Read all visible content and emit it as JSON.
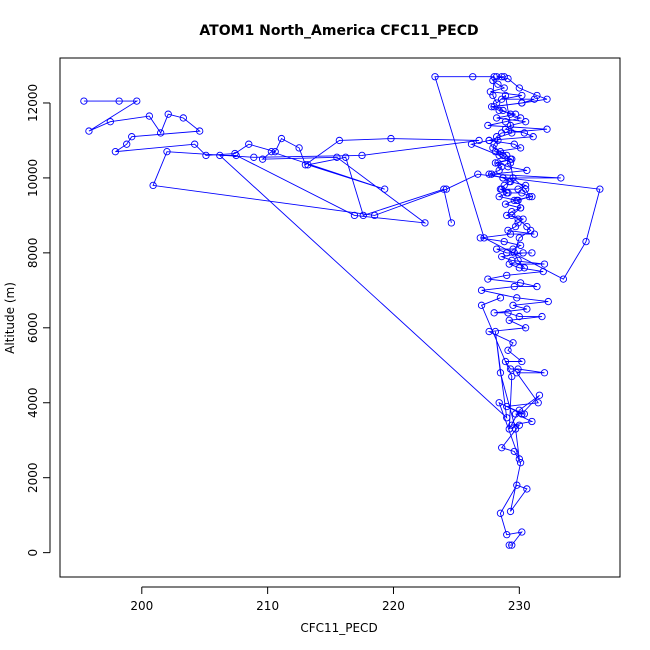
{
  "chart_data": {
    "type": "scatter",
    "title": "ATOM1 North_America CFC11_PECD",
    "xlabel": "CFC11_PECD",
    "ylabel": "Altitude (m)",
    "xlim": [
      193.5,
      238.0
    ],
    "ylim": [
      -650,
      13200
    ],
    "xticks": [
      200,
      210,
      220,
      230
    ],
    "yticks": [
      0,
      2000,
      4000,
      6000,
      8000,
      10000,
      12000
    ],
    "grid": false,
    "legend": "none",
    "colors": {
      "series": "#0000ff",
      "axis": "#000000"
    },
    "markers": "open-circle",
    "connected": true,
    "series": [
      {
        "x": [
          229.2,
          229.4,
          230.2,
          229.0,
          228.5,
          229.8,
          230.6,
          229.3,
          230.1,
          229.6,
          228.6,
          230.0,
          229.4,
          231.0,
          229.7,
          230.4,
          229.0,
          231.5,
          229.8,
          232.0,
          229.9,
          229.3,
          228.9,
          230.2,
          229.1,
          229.5,
          227.6,
          230.5,
          229.2,
          231.8,
          230.0,
          229.1,
          228.0,
          230.6,
          229.5,
          232.3,
          229.8,
          227.0,
          229.6,
          231.4,
          230.1,
          227.5,
          229.0,
          231.9,
          230.0,
          229.2,
          232.0,
          229.4,
          228.6,
          230.3,
          231.0,
          229.0,
          228.2,
          229.5,
          230.1,
          228.8,
          226.9,
          229.3,
          231.2,
          229.1,
          229.7,
          229.9,
          230.3,
          229.0,
          229.4,
          230.1,
          228.9,
          229.6,
          231.0,
          230.2,
          229.0,
          228.5,
          229.9,
          230.5,
          229.3,
          228.7,
          233.3,
          227.8,
          230.6,
          229.1,
          228.3,
          229.4,
          228.7,
          228.1,
          230.1,
          229.6,
          227.6,
          231.1,
          230.4,
          228.9,
          229.3,
          230.5,
          228.2,
          229.7,
          228.4,
          227.8,
          230.2,
          231.2,
          228.6,
          230.2,
          227.7,
          228.8,
          228.3,
          227.9,
          228.6,
          228.8,
          228.2,
          229.1,
          230.0,
          231.4,
          232.2,
          230.2,
          228.0,
          228.7,
          229.3,
          230.1,
          228.9,
          227.5,
          232.2,
          228.6,
          228.2,
          228.3,
          228.0,
          227.9,
          228.5,
          229.0,
          229.3,
          228.1,
          228.6,
          228.4,
          227.6,
          228.7,
          229.2,
          228.8,
          228.6,
          229.1,
          228.4,
          229.8
        ],
        "y": [
          200,
          200,
          550,
          480,
          1050,
          1800,
          1700,
          1100,
          2400,
          2700,
          2800,
          3400,
          3400,
          3500,
          3700,
          3700,
          3900,
          4000,
          4800,
          4800,
          4900,
          4900,
          5100,
          5100,
          5400,
          5600,
          5900,
          6000,
          6200,
          6300,
          6300,
          6400,
          6400,
          6500,
          6600,
          6700,
          6800,
          7000,
          7100,
          7100,
          7200,
          7300,
          7400,
          7500,
          7600,
          7700,
          7700,
          7800,
          7900,
          8000,
          8000,
          8000,
          8100,
          8100,
          8200,
          8300,
          8400,
          8500,
          8500,
          8600,
          8700,
          8800,
          8900,
          9000,
          9100,
          9200,
          9300,
          9400,
          9500,
          9600,
          9600,
          9700,
          9700,
          9800,
          9900,
          10000,
          10000,
          10100,
          10200,
          10300,
          10400,
          10500,
          10600,
          10700,
          10800,
          10900,
          11000,
          11100,
          11200,
          11300,
          11400,
          11500,
          11600,
          11700,
          11800,
          11900,
          12000,
          12100,
          12100,
          12200,
          12300,
          12400,
          12500,
          12600,
          12700,
          12700,
          12700,
          12650,
          12400,
          12200,
          12100,
          12000,
          11900,
          11800,
          11700,
          11600,
          11500,
          11400,
          11300,
          11200,
          11100,
          11000,
          10900,
          10800,
          10700,
          10600,
          10500,
          10400,
          10300,
          10200,
          10100,
          10000,
          9900,
          9800,
          9700,
          9600,
          9500,
          9400
        ],
        "name": ""
      },
      {
        "x": [
          195.4,
          198.2,
          199.6,
          195.8,
          197.5,
          200.6,
          201.5,
          202.1,
          203.3,
          204.6,
          199.2,
          198.8,
          197.9,
          204.2,
          205.1,
          207.4,
          208.5,
          210.6,
          211.1,
          212.5,
          213.0,
          215.7,
          219.8,
          226.8,
          217.5,
          208.9,
          202.0,
          200.9,
          218.5,
          224.2,
          226.7,
          236.4,
          235.3,
          233.5,
          227.2,
          223.3,
          226.3,
          228.0,
          227.9,
          228.2,
          228.9,
          229.4,
          227.6,
          226.2,
          228.4,
          229.3,
          229.5,
          230.5,
          230.8,
          229.9,
          230.1,
          229.4,
          229.9,
          230.6,
          230.9,
          230.0,
          229.6,
          229.9,
          230.4
        ],
        "y": [
          12050,
          12050,
          12050,
          11250,
          11500,
          11650,
          11200,
          11700,
          11600,
          11250,
          11100,
          10900,
          10700,
          10900,
          10600,
          10650,
          10900,
          10700,
          11050,
          10800,
          10350,
          11000,
          11050,
          11000,
          10600,
          10550,
          10700,
          9800,
          9000,
          9700,
          10100,
          9700,
          8300,
          7300,
          8400,
          12700,
          12700,
          12700,
          12200,
          12000,
          12200,
          11200,
          11000,
          10900,
          10600,
          10400,
          10000,
          9700,
          9500,
          9400,
          9200,
          9000,
          8900,
          8700,
          8600,
          8400,
          8000,
          7800,
          7600
        ],
        "name": ""
      },
      {
        "x": [
          224.6,
          224.0,
          217.6,
          216.2,
          213.2,
          219.3,
          210.3,
          209.6,
          215.5,
          222.5,
          216.9,
          207.5,
          206.2,
          229.0,
          228.1,
          228.5,
          229.7,
          230.0,
          228.4,
          230.2,
          231.6,
          230.0,
          229.2,
          229.4,
          227.0,
          228.5
        ],
        "y": [
          8800,
          9700,
          9000,
          10550,
          10350,
          9700,
          10700,
          10500,
          10550,
          8800,
          9000,
          10600,
          10600,
          3600,
          5900,
          4800,
          3300,
          2500,
          4000,
          3700,
          4200,
          3800,
          3300,
          4700,
          6600,
          6800
        ],
        "name": ""
      }
    ]
  }
}
